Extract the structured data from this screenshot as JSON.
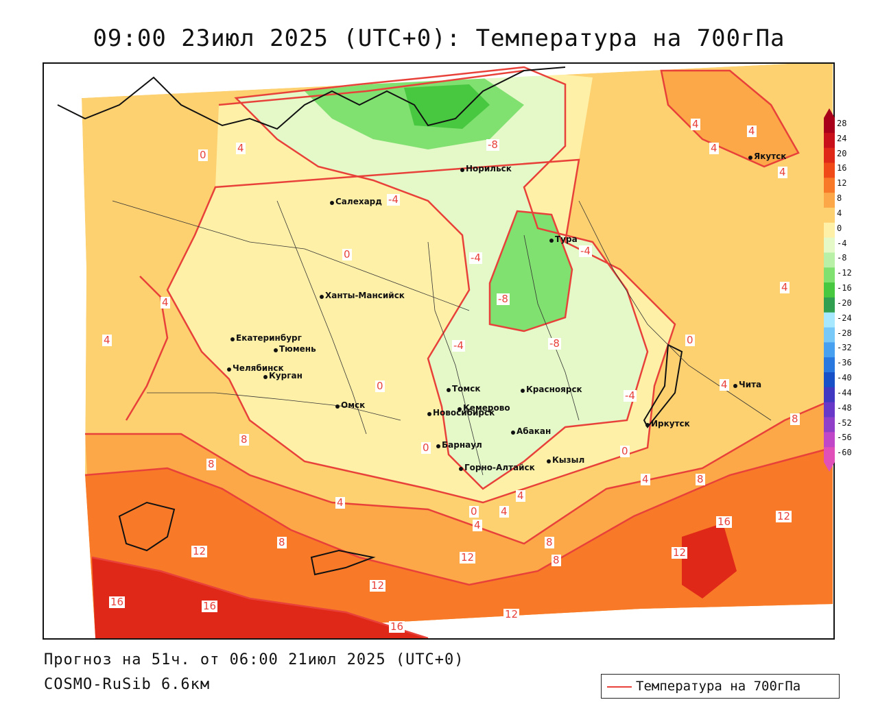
{
  "title": "09:00 23июл 2025 (UTC+0): Температура на 700гПа",
  "forecast_line": "Прогноз на 51ч. от 06:00 21июл 2025 (UTC+0)",
  "model_line": "COSMO-RuSib 6.6км",
  "legend": {
    "label": "Температура на 700гПа",
    "color": "#e8413a"
  },
  "colorbar": {
    "levels": [
      "28",
      "24",
      "20",
      "16",
      "12",
      "8",
      "4",
      "0",
      "-4",
      "-8",
      "-12",
      "-16",
      "-20",
      "-24",
      "-28",
      "-32",
      "-36",
      "-40",
      "-44",
      "-48",
      "-52",
      "-56",
      "-60"
    ],
    "colors": [
      "#a8001a",
      "#c8101a",
      "#e02818",
      "#f04a18",
      "#f87a28",
      "#fca848",
      "#fdd070",
      "#fff0a8",
      "#e4f8c8",
      "#b8f0a8",
      "#80e070",
      "#48c840",
      "#30a050",
      "#a8e8ff",
      "#78c8f8",
      "#48a0f0",
      "#2878e0",
      "#1850c8",
      "#4038c0",
      "#6838c8",
      "#9040c8",
      "#c048c8",
      "#e050b8"
    ]
  },
  "cities": [
    {
      "name": "Норильск"
    },
    {
      "name": "Салехард"
    },
    {
      "name": "Тура"
    },
    {
      "name": "Якутск"
    },
    {
      "name": "Ханты-Мансийск"
    },
    {
      "name": "Екатеринбург"
    },
    {
      "name": "Тюмень"
    },
    {
      "name": "Челябинск"
    },
    {
      "name": "Курган"
    },
    {
      "name": "Омск"
    },
    {
      "name": "Новосибирск"
    },
    {
      "name": "Томск"
    },
    {
      "name": "Кемерово"
    },
    {
      "name": "Красноярск"
    },
    {
      "name": "Абакан"
    },
    {
      "name": "Барнаул"
    },
    {
      "name": "Горно-Алтайск"
    },
    {
      "name": "Кызыл"
    },
    {
      "name": "Иркутск"
    },
    {
      "name": "Чита"
    }
  ],
  "isotherm_labels": [
    "4",
    "0",
    "-8",
    "-4",
    "0",
    "4",
    "4",
    "4",
    "4",
    "-4",
    "-4",
    "-8",
    "-8",
    "-4",
    "0",
    "4",
    "4",
    "0",
    "-4",
    "4",
    "0",
    "4",
    "8",
    "4",
    "8",
    "8",
    "4",
    "0",
    "4",
    "4",
    "8",
    "8",
    "8",
    "12",
    "12",
    "12",
    "16",
    "16",
    "16",
    "12",
    "16",
    "12",
    "12",
    "8",
    "4",
    "0"
  ]
}
